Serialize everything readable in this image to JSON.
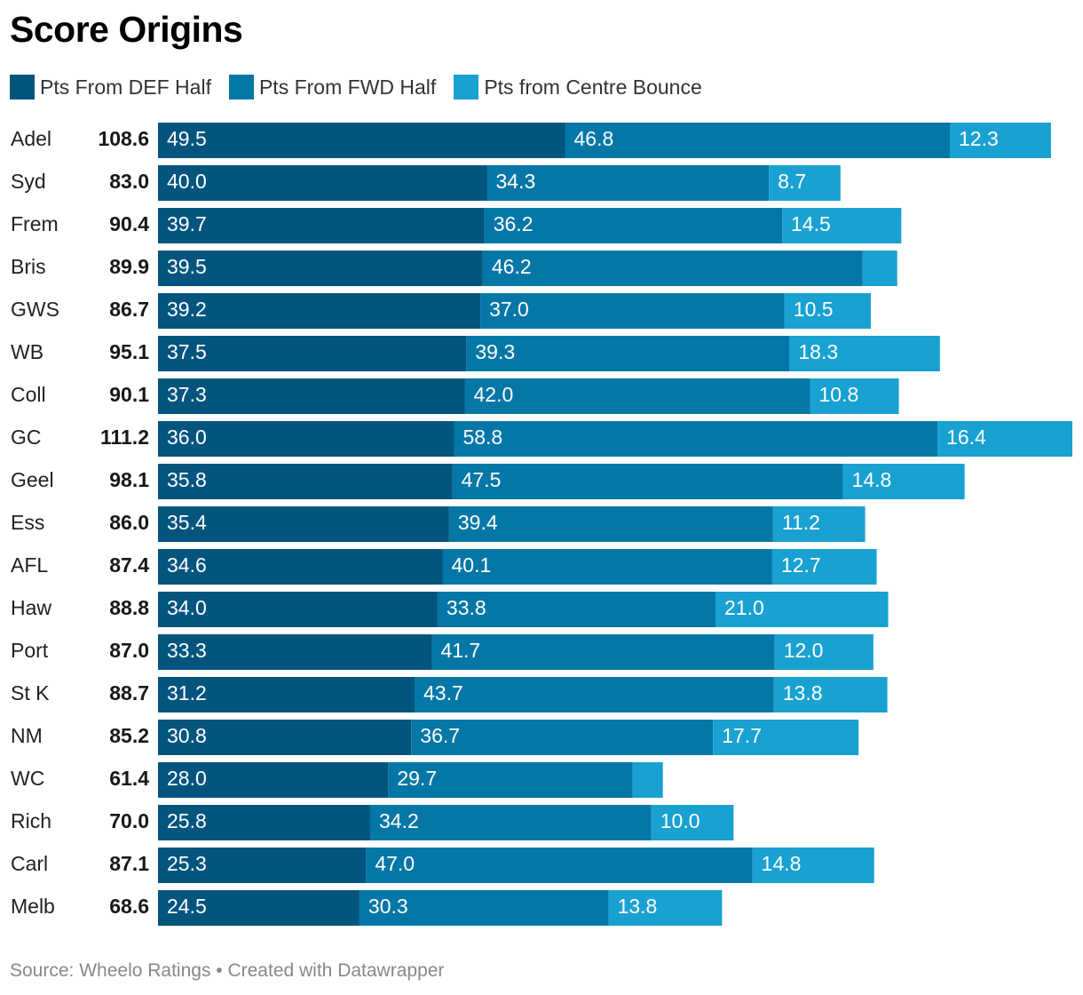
{
  "chart_data": {
    "type": "bar",
    "orientation": "horizontal",
    "stacked": true,
    "title": "Score Origins",
    "categories": [
      "Adel",
      "Syd",
      "Frem",
      "Bris",
      "GWS",
      "WB",
      "Coll",
      "GC",
      "Geel",
      "Ess",
      "AFL",
      "Haw",
      "Port",
      "St K",
      "NM",
      "WC",
      "Rich",
      "Carl",
      "Melb"
    ],
    "totals": [
      "108.6",
      "83.0",
      "90.4",
      "89.9",
      "86.7",
      "95.1",
      "90.1",
      "111.2",
      "98.1",
      "86.0",
      "87.4",
      "88.8",
      "87.0",
      "88.7",
      "85.2",
      "61.4",
      "70.0",
      "87.1",
      "68.6"
    ],
    "series": [
      {
        "name": "Pts From DEF Half",
        "color": "#03557e",
        "values": [
          49.5,
          40.0,
          39.7,
          39.5,
          39.2,
          37.5,
          37.3,
          36.0,
          35.8,
          35.4,
          34.6,
          34.0,
          33.3,
          31.2,
          30.8,
          28.0,
          25.8,
          25.3,
          24.5
        ]
      },
      {
        "name": "Pts From FWD Half",
        "color": "#0577a6",
        "values": [
          46.8,
          34.3,
          36.2,
          46.2,
          37.0,
          39.3,
          42.0,
          58.8,
          47.5,
          39.4,
          40.1,
          33.8,
          41.7,
          43.7,
          36.7,
          29.7,
          34.2,
          47.0,
          30.3
        ]
      },
      {
        "name": "Pts from Centre Bounce",
        "color": "#19a1d1",
        "values": [
          12.3,
          8.7,
          14.5,
          4.2,
          10.5,
          18.3,
          10.8,
          16.4,
          14.8,
          11.2,
          12.7,
          21.0,
          12.0,
          13.8,
          17.7,
          3.7,
          10.0,
          14.8,
          13.8
        ],
        "labels": [
          "12.3",
          "8.7",
          "14.5",
          "",
          "10.5",
          "18.3",
          "10.8",
          "16.4",
          "14.8",
          "11.2",
          "12.7",
          "21.0",
          "12.0",
          "13.8",
          "17.7",
          "",
          "10.0",
          "14.8",
          "13.8"
        ]
      }
    ],
    "xlim": [
      0,
      111.2
    ],
    "legend_position": "top-left",
    "grid": false
  },
  "footer": {
    "source": "Source: Wheelo Ratings • Created with Datawrapper"
  }
}
